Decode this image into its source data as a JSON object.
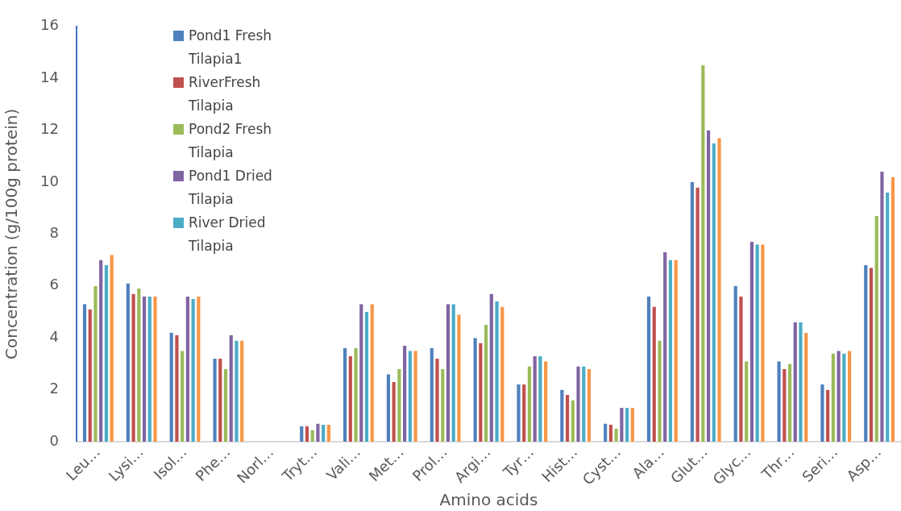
{
  "chart_data": {
    "type": "bar",
    "xlabel": "Amino acids",
    "ylabel": "Concentration (g/100g protein)",
    "categories": [
      "Leu…",
      "Lysi…",
      "Isol…",
      "Phe…",
      "Norl…",
      "Tryt…",
      "Vali…",
      "Met…",
      "Prol…",
      "Argi…",
      "Tyr…",
      "Hist…",
      "Cyst…",
      "Ala…",
      "Glut…",
      "Glyc…",
      "Thr…",
      "Seri…",
      "Asp…"
    ],
    "series": [
      {
        "name": "Pond1 Fresh Tilapia1",
        "color": "#4f81bd",
        "values": [
          5.3,
          6.1,
          4.2,
          3.2,
          null,
          0.6,
          3.6,
          2.6,
          3.6,
          4.0,
          2.2,
          2.0,
          0.7,
          5.6,
          10.0,
          6.0,
          3.1,
          2.2,
          6.8
        ]
      },
      {
        "name": "RiverFresh Tilapia",
        "color": "#c0504d",
        "values": [
          5.1,
          5.7,
          4.1,
          3.2,
          null,
          0.6,
          3.3,
          2.3,
          3.2,
          3.8,
          2.2,
          1.8,
          0.65,
          5.2,
          9.8,
          5.6,
          2.8,
          2.0,
          6.7
        ]
      },
      {
        "name": "Pond2 Fresh Tilapia",
        "color": "#9bbb59",
        "values": [
          6.0,
          5.9,
          3.5,
          2.8,
          null,
          0.45,
          3.6,
          2.8,
          2.8,
          4.5,
          2.9,
          1.6,
          0.5,
          3.9,
          14.5,
          3.1,
          3.0,
          3.4,
          8.7
        ]
      },
      {
        "name": "Pond1 Dried Tilapia",
        "color": "#8064a2",
        "values": [
          7.0,
          5.6,
          5.6,
          4.1,
          null,
          0.7,
          5.3,
          3.7,
          5.3,
          5.7,
          3.3,
          2.9,
          1.3,
          7.3,
          12.0,
          7.7,
          4.6,
          3.5,
          10.4
        ]
      },
      {
        "name": "River Dried Tilapia",
        "color": "#4bacc6",
        "values": [
          6.8,
          5.6,
          5.5,
          3.9,
          null,
          0.65,
          5.0,
          3.5,
          5.3,
          5.4,
          3.3,
          2.9,
          1.3,
          7.0,
          11.5,
          7.6,
          4.6,
          3.4,
          9.6
        ]
      },
      {
        "color": "#f79646",
        "values": [
          7.2,
          5.6,
          5.6,
          3.9,
          null,
          0.65,
          5.3,
          3.5,
          4.9,
          5.2,
          3.1,
          2.8,
          1.3,
          7.0,
          11.7,
          7.6,
          4.2,
          3.5,
          10.2
        ]
      }
    ],
    "ylim": [
      0,
      16
    ],
    "yticks": [
      0,
      2,
      4,
      6,
      8,
      10,
      12,
      14,
      16
    ],
    "grid": false,
    "legend": "top left"
  }
}
